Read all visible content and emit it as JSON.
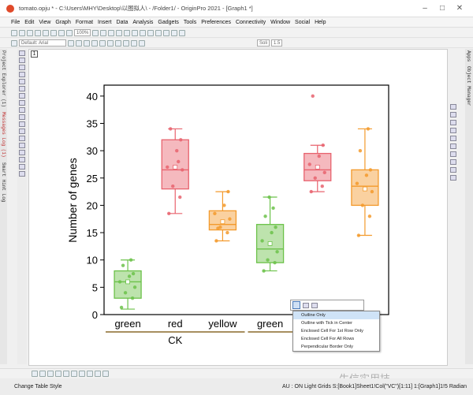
{
  "window": {
    "title": "tomato.opju * - C:\\Users\\MHY\\Desktop\\以图拟人\\ - /Folder1/ - OriginPro 2021 - [Graph1 *]"
  },
  "menu": [
    "File",
    "Edit",
    "View",
    "Graph",
    "Format",
    "Insert",
    "Data",
    "Analysis",
    "Gadgets",
    "Tools",
    "Preferences",
    "Connectivity",
    "Window",
    "Social",
    "Help"
  ],
  "toolbar": {
    "zoom": "100%",
    "font": "Default: Arial",
    "line_style": "Soli",
    "line_width": "1.5"
  },
  "left_rail": [
    "Project Explorer (1)",
    "Messages Log (1)",
    "Smart Hint Log"
  ],
  "right_rail": [
    "Apps",
    "Object Manager"
  ],
  "layer_tab": "1",
  "colors": {
    "green": "#6cc24a",
    "red": "#e8636e",
    "yellow": "#f39a2c"
  },
  "chart_data": {
    "type": "box",
    "ylabel": "Number of genes",
    "ylim": [
      0,
      42
    ],
    "yticks": [
      0,
      5,
      10,
      15,
      20,
      25,
      30,
      35,
      40
    ],
    "categories": [
      "green",
      "red",
      "yellow",
      "green",
      "",
      ""
    ],
    "groups": [
      {
        "name": "CK",
        "span": [
          0,
          2
        ]
      }
    ],
    "boxes": [
      {
        "color": "green",
        "q1": 3.0,
        "median": 6.0,
        "mean": 6.0,
        "q3": 8.0,
        "whisker_low": 1.0,
        "whisker_high": 10.0,
        "points": [
          1.3,
          3.0,
          4.0,
          5.0,
          6.0,
          7.0,
          7.5,
          9.0,
          10.0
        ]
      },
      {
        "color": "red",
        "q1": 23.0,
        "median": 26.5,
        "mean": 27.0,
        "q3": 32.0,
        "whisker_low": 18.5,
        "whisker_high": 34.0,
        "points": [
          18.5,
          21.5,
          23.5,
          26.5,
          27.0,
          30.0,
          32.0,
          34.0,
          28.0
        ]
      },
      {
        "color": "yellow",
        "q1": 15.5,
        "median": 16.5,
        "mean": 17.0,
        "q3": 19.0,
        "whisker_low": 13.5,
        "whisker_high": 22.5,
        "points": [
          13.5,
          15.0,
          16.0,
          17.5,
          18.5,
          20.0,
          22.5,
          15.8
        ]
      },
      {
        "color": "green",
        "q1": 9.5,
        "median": 12.0,
        "mean": 13.0,
        "q3": 16.5,
        "whisker_low": 8.0,
        "whisker_high": 21.5,
        "points": [
          8.0,
          9.5,
          10.0,
          11.5,
          13.5,
          15.0,
          16.0,
          18.0,
          19.5,
          21.5
        ]
      },
      {
        "color": "red",
        "q1": 24.5,
        "median": 26.5,
        "mean": 27.0,
        "q3": 29.5,
        "whisker_low": 22.5,
        "whisker_high": 31.0,
        "points": [
          22.5,
          23.5,
          25.0,
          26.0,
          27.5,
          29.0,
          31.0,
          40.0
        ]
      },
      {
        "color": "yellow",
        "q1": 20.0,
        "median": 23.5,
        "mean": 23.0,
        "q3": 26.5,
        "whisker_low": 14.5,
        "whisker_high": 34.0,
        "points": [
          14.5,
          18.0,
          20.0,
          22.5,
          24.0,
          25.5,
          26.5,
          30.0,
          34.0
        ]
      }
    ]
  },
  "popup_menu": {
    "items": [
      "Outline Only",
      "Outline with Tick in Center",
      "Enclosed Cell For 1st Row Only",
      "Enclosed Cell For All Rows",
      "Perpendicular Border Only"
    ],
    "selected": 0
  },
  "status": {
    "left": "Change Table Style",
    "right": "AU : ON  Light Grids  S:[Book1]Sheet1!Col(\"VC\")[1:11]  1:[Graph1]1!5  Radian"
  },
  "watermark": "生信实用技"
}
